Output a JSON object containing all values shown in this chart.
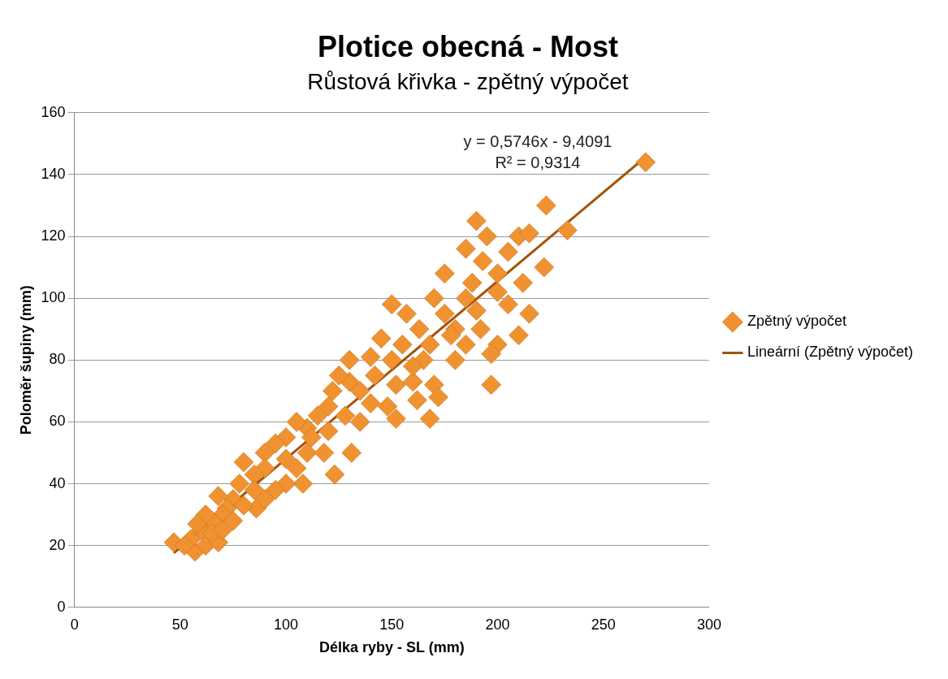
{
  "chart_data": {
    "type": "scatter",
    "title": "Plotice obecná - Most",
    "subtitle": "Růstová křivka - zpětný výpočet",
    "xlabel": "Délka ryby - SL (mm)",
    "ylabel": "Poloměr šupiny (mm)",
    "xlim": [
      0,
      300
    ],
    "xticks": [
      0,
      50,
      100,
      150,
      200,
      250,
      300
    ],
    "ylim": [
      0,
      160
    ],
    "yticks": [
      0,
      20,
      40,
      60,
      80,
      100,
      120,
      140,
      160
    ],
    "grid": "y",
    "legend": "right",
    "annotations": [
      "y = 0,5746x - 9,4091",
      "R² = 0,9314"
    ],
    "series": [
      {
        "name": "Zpětný výpočet",
        "type": "scatter",
        "marker": "diamond",
        "color": "#f0922f",
        "x": [
          270,
          223,
          233,
          190,
          222,
          197,
          215,
          168,
          152,
          150,
          123,
          131,
          86,
          47,
          57,
          62,
          68,
          200,
          210,
          180,
          197,
          200,
          210,
          215,
          195,
          205,
          175,
          185,
          193,
          170,
          163,
          157,
          145,
          140,
          130,
          130,
          140,
          135,
          148,
          160,
          165,
          170,
          172,
          160,
          175,
          180,
          185,
          190,
          155,
          150,
          120,
          122,
          125,
          128,
          115,
          110,
          105,
          100,
          95,
          90,
          100,
          105,
          110,
          112,
          118,
          120,
          108,
          100,
          95,
          90,
          85,
          80,
          78,
          75,
          72,
          70,
          68,
          65,
          62,
          60,
          58,
          55,
          52,
          65,
          70,
          75,
          80,
          85,
          90,
          135,
          142,
          152,
          162,
          168,
          178,
          188,
          200,
          205,
          212,
          185,
          192
        ],
        "values": [
          144,
          130,
          122,
          125,
          110,
          72,
          95,
          61,
          61,
          98,
          43,
          50,
          32,
          21,
          18,
          20,
          21,
          85,
          88,
          80,
          82,
          102,
          120,
          121,
          120,
          115,
          108,
          116,
          112,
          100,
          90,
          95,
          87,
          81,
          80,
          73,
          66,
          60,
          65,
          73,
          80,
          72,
          68,
          78,
          95,
          90,
          100,
          96,
          85,
          80,
          65,
          70,
          75,
          62,
          62,
          58,
          60,
          55,
          53,
          50,
          48,
          45,
          50,
          55,
          50,
          57,
          40,
          40,
          38,
          45,
          43,
          47,
          40,
          35,
          32,
          30,
          36,
          28,
          30,
          25,
          27,
          22,
          20,
          24,
          25,
          28,
          33,
          38,
          35,
          70,
          75,
          72,
          67,
          85,
          88,
          105,
          108,
          98,
          105,
          85,
          90
        ]
      },
      {
        "name": "Lineární (Zpětný výpočet)",
        "type": "line",
        "marker": "none",
        "color": "#a5530a",
        "x": [
          47,
          270
        ],
        "values": [
          17.6,
          145.7
        ]
      }
    ]
  }
}
